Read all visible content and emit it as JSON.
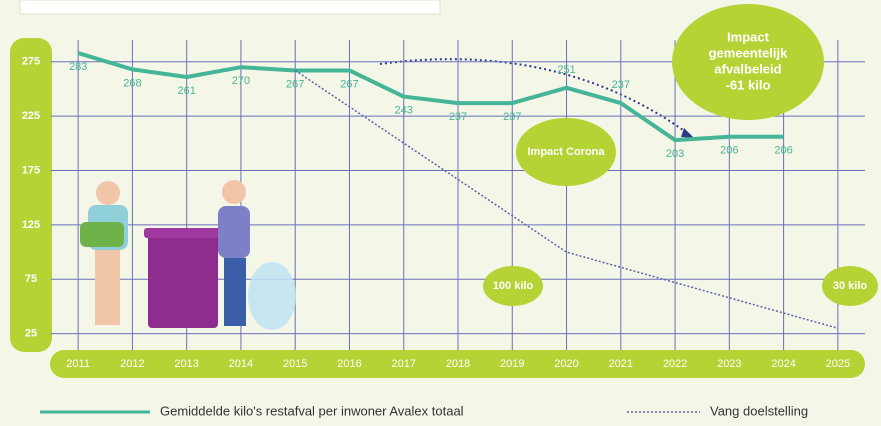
{
  "chart_data": {
    "type": "line",
    "x": [
      2011,
      2012,
      2013,
      2014,
      2015,
      2016,
      2017,
      2018,
      2019,
      2020,
      2021,
      2022,
      2023,
      2024,
      2025
    ],
    "xlim": [
      2010.5,
      2025.5
    ],
    "xticks": [
      2011,
      2012,
      2013,
      2014,
      2015,
      2016,
      2017,
      2018,
      2019,
      2020,
      2021,
      2022,
      2023,
      2024,
      2025
    ],
    "ylim": [
      10,
      295
    ],
    "yticks": [
      25,
      75,
      125,
      175,
      225,
      275
    ],
    "grid": true,
    "series": [
      {
        "name": "Gemiddelde kilo's restafval per inwoner Avalex totaal",
        "color": "#45b597",
        "values": [
          283,
          268,
          261,
          270,
          267,
          267,
          243,
          237,
          237,
          251,
          237,
          203,
          206,
          206,
          null
        ]
      },
      {
        "name": "Vang doelstelling",
        "color": "#5a62a8",
        "dashed": true,
        "x": [
          2015,
          2020,
          2025
        ],
        "values": [
          267,
          100,
          30
        ]
      }
    ],
    "annotations": [
      {
        "lines": [
          "Impact Corona"
        ]
      },
      {
        "lines": [
          "Impact",
          "gemeentelijk",
          "afvalbeleid",
          "-61 kilo"
        ]
      },
      {
        "lines": [
          "100 kilo"
        ]
      },
      {
        "lines": [
          "30 kilo"
        ]
      }
    ]
  }
}
